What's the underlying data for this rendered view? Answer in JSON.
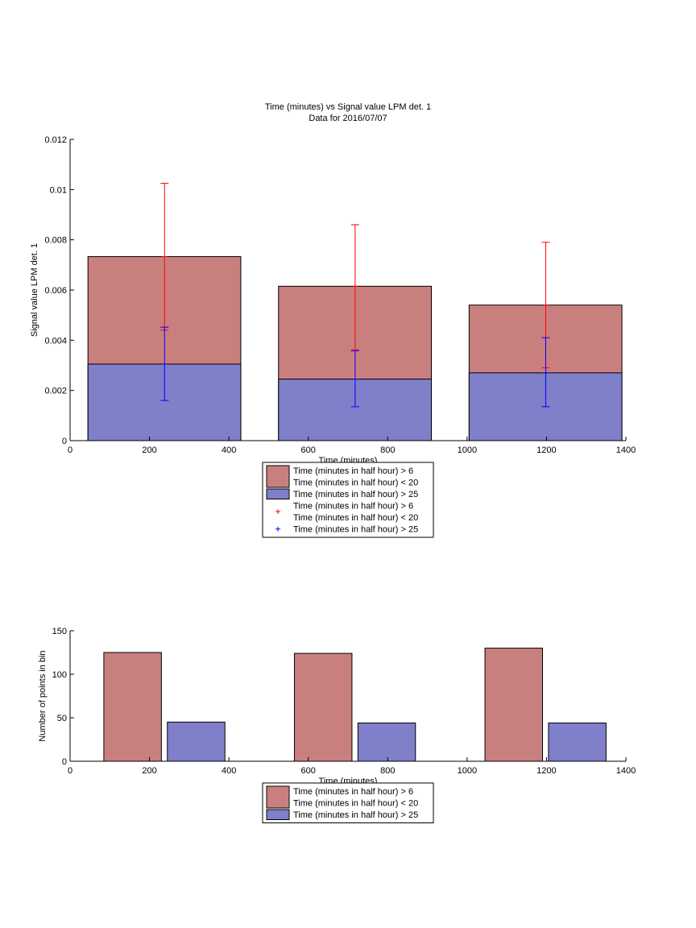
{
  "colors": {
    "red_bar": "#CA7F7F",
    "blue_bar": "#7F7FCA",
    "red_err": "#FF0000",
    "blue_err": "#0000FF"
  },
  "chart_data": [
    {
      "type": "bar",
      "stacking": "overlaid",
      "title": "Time (minutes) vs Signal value LPM det. 1",
      "subtitle": "Data for 2016/07/07",
      "xlabel": "Time (minutes)",
      "ylabel": "Signal value LPM det. 1",
      "xlim": [
        0,
        1400
      ],
      "ylim": [
        0,
        0.012
      ],
      "xticks": [
        0,
        200,
        400,
        600,
        800,
        1000,
        1200,
        1400
      ],
      "xtick_labels": [
        "0",
        "200",
        "400",
        "600",
        "800",
        "1000",
        "1200",
        "1400"
      ],
      "yticks": [
        0,
        0.002,
        0.004,
        0.006,
        0.008,
        0.01,
        0.012
      ],
      "ytick_labels": [
        "0",
        "0.002",
        "0.004",
        "0.006",
        "0.008",
        "0.01",
        "0.012"
      ],
      "grid": false,
      "legend_position": "bottom",
      "bins": [
        {
          "x_start": 45,
          "x_end": 430
        },
        {
          "x_start": 525,
          "x_end": 910
        },
        {
          "x_start": 1005,
          "x_end": 1390
        }
      ],
      "series": [
        {
          "name": "Time (minutes in half hour) > 6\nTime (minutes in half hour) < 20",
          "kind": "bar",
          "color": "#CA7F7F",
          "values": [
            0.00733,
            0.00615,
            0.0054
          ]
        },
        {
          "name": "Time (minutes in half hour) > 25",
          "kind": "bar",
          "color": "#7F7FCA",
          "values": [
            0.00305,
            0.00245,
            0.0027
          ]
        }
      ],
      "error_series": [
        {
          "name": "Time (minutes in half hour) > 6\nTime (minutes in half hour) < 20",
          "color": "#FF0000",
          "x": [
            238,
            718,
            1198
          ],
          "y": [
            0.00733,
            0.00615,
            0.0054
          ],
          "low": [
            0.0044,
            0.00362,
            0.0029
          ],
          "high": [
            0.01025,
            0.0086,
            0.0079
          ]
        },
        {
          "name": "Time (minutes in half hour) > 25",
          "color": "#0000FF",
          "x": [
            238,
            718,
            1198
          ],
          "y": [
            0.00305,
            0.00245,
            0.0027
          ],
          "low": [
            0.0016,
            0.00135,
            0.00135
          ],
          "high": [
            0.00452,
            0.00358,
            0.0041
          ]
        }
      ],
      "legend": [
        {
          "marker": "patch",
          "color": "#CA7F7F",
          "lines": [
            "Time (minutes in half hour) > 6",
            "Time (minutes in half hour) < 20"
          ]
        },
        {
          "marker": "patch",
          "color": "#7F7FCA",
          "lines": [
            "Time (minutes in half hour) > 25"
          ]
        },
        {
          "marker": "plus",
          "color": "#FF0000",
          "lines": [
            "Time (minutes in half hour) > 6",
            "Time (minutes in half hour) < 20"
          ]
        },
        {
          "marker": "plus",
          "color": "#0000FF",
          "lines": [
            "Time (minutes in half hour) > 25"
          ]
        }
      ]
    },
    {
      "type": "bar",
      "xlabel": "Time (minutes)",
      "ylabel": "Number of points in bin",
      "xlim": [
        0,
        1400
      ],
      "ylim": [
        0,
        150
      ],
      "xticks": [
        0,
        200,
        400,
        600,
        800,
        1000,
        1200,
        1400
      ],
      "xtick_labels": [
        "0",
        "200",
        "400",
        "600",
        "800",
        "1000",
        "1200",
        "1400"
      ],
      "yticks": [
        0,
        50,
        100,
        150
      ],
      "ytick_labels": [
        "0",
        "50",
        "100",
        "150"
      ],
      "grid": false,
      "legend_position": "bottom",
      "bars": [
        {
          "series": 0,
          "x_start": 85,
          "x_end": 230,
          "value": 125
        },
        {
          "series": 1,
          "x_start": 245,
          "x_end": 390,
          "value": 45
        },
        {
          "series": 0,
          "x_start": 565,
          "x_end": 710,
          "value": 124
        },
        {
          "series": 1,
          "x_start": 725,
          "x_end": 870,
          "value": 44
        },
        {
          "series": 0,
          "x_start": 1045,
          "x_end": 1190,
          "value": 130
        },
        {
          "series": 1,
          "x_start": 1205,
          "x_end": 1350,
          "value": 44
        }
      ],
      "series": [
        {
          "name": "Time (minutes in half hour) > 6\nTime (minutes in half hour) < 20",
          "color": "#CA7F7F",
          "values": [
            125,
            124,
            130
          ]
        },
        {
          "name": "Time (minutes in half hour) > 25",
          "color": "#7F7FCA",
          "values": [
            45,
            44,
            44
          ]
        }
      ],
      "legend": [
        {
          "marker": "patch",
          "color": "#CA7F7F",
          "lines": [
            "Time (minutes in half hour) > 6",
            "Time (minutes in half hour) < 20"
          ]
        },
        {
          "marker": "patch",
          "color": "#7F7FCA",
          "lines": [
            "Time (minutes in half hour) > 25"
          ]
        }
      ]
    }
  ]
}
